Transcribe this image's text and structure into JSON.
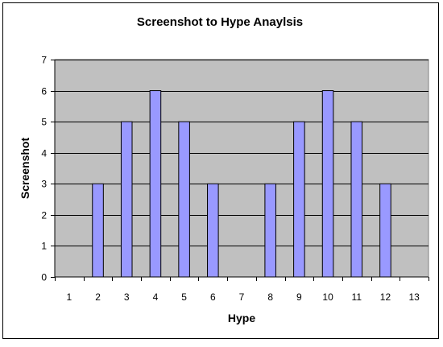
{
  "chart_data": {
    "type": "bar",
    "title": "Screenshot to Hype Anaylsis",
    "xlabel": "Hype",
    "ylabel": "Screenshot",
    "categories": [
      "1",
      "2",
      "3",
      "4",
      "5",
      "6",
      "7",
      "8",
      "9",
      "10",
      "11",
      "12",
      "13"
    ],
    "values": [
      0,
      3,
      5,
      6,
      5,
      3,
      0,
      3,
      5,
      6,
      5,
      3,
      0
    ],
    "ylim": [
      0,
      7
    ],
    "yticks": [
      "0",
      "1",
      "2",
      "3",
      "4",
      "5",
      "6",
      "7"
    ],
    "grid": true,
    "legend": "none",
    "colors": {
      "bar_fill": "#9999ff",
      "bar_stroke": "#000000",
      "plot_background": "#c0c0c0",
      "chart_background": "#ffffff",
      "gridline": "#000000"
    }
  }
}
